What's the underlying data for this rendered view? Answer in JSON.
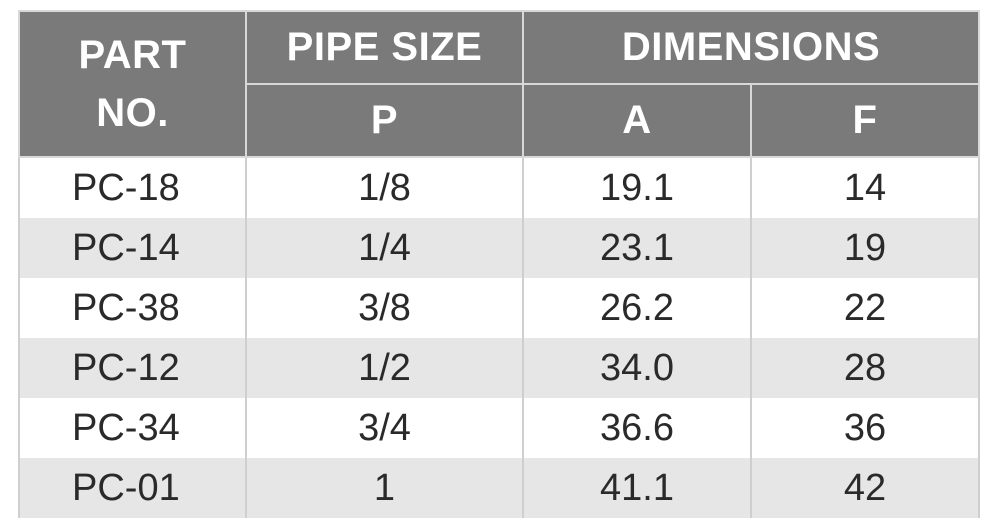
{
  "table": {
    "header": {
      "part_no": "PART NO.",
      "pipe_size": "PIPE SIZE",
      "dimensions": "DIMENSIONS",
      "p": "P",
      "a": "A",
      "f": "F"
    },
    "rows": [
      [
        "PC-18",
        "1/8",
        "19.1",
        "14"
      ],
      [
        "PC-14",
        "1/4",
        "23.1",
        "19"
      ],
      [
        "PC-38",
        "3/8",
        "26.2",
        "22"
      ],
      [
        "PC-12",
        "1/2",
        "34.0",
        "28"
      ],
      [
        "PC-34",
        "3/4",
        "36.6",
        "36"
      ],
      [
        "PC-01",
        "1",
        "41.1",
        "42"
      ]
    ]
  }
}
